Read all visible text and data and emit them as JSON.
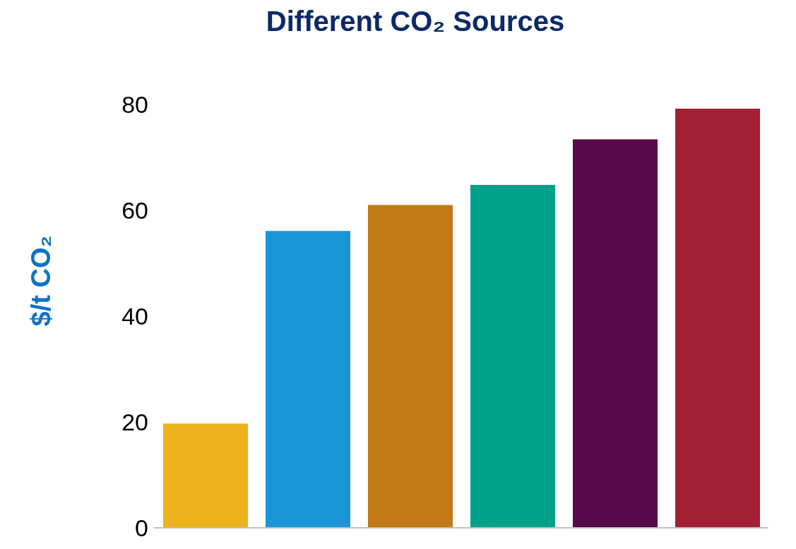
{
  "chart_data": {
    "type": "bar",
    "title": "Different CO₂ Sources",
    "ylabel": "$/t CO₂",
    "categories": [
      null,
      null,
      null,
      null,
      null,
      null
    ],
    "values": [
      19.7,
      56.1,
      61,
      64.8,
      73.4,
      79.2
    ],
    "colors": [
      "#eeb11e",
      "#1a96d6",
      "#c17a15",
      "#00a18a",
      "#560a4a",
      "#a31f34"
    ],
    "ylim": [
      0,
      80
    ],
    "yticks": [
      0,
      20,
      40,
      60,
      80
    ],
    "grid": false,
    "tick_labels": "y"
  }
}
